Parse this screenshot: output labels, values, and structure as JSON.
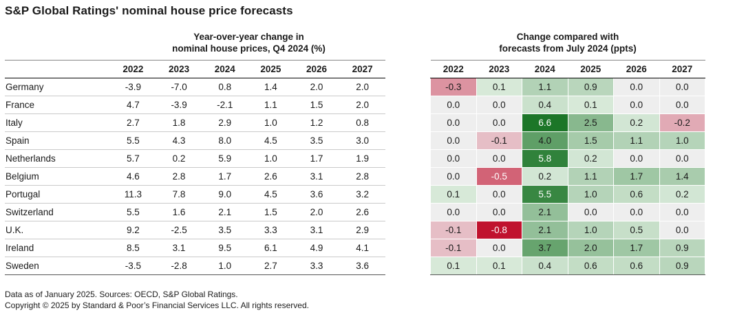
{
  "title": "S&P Global Ratings' nominal house price forecasts",
  "left_heading": [
    "Year-over-year change in",
    "nominal house prices, Q4 2024 (%)"
  ],
  "right_heading": [
    "Change compared with",
    "forecasts from July 2024 (ppts)"
  ],
  "footer": {
    "source": "Data as of January 2025. Sources: OECD, S&P Global Ratings.",
    "copyright": "Copyright © 2025 by Standard & Poor’s Financial Services LLC. All rights reserved."
  },
  "colors": {
    "positive_dark": "#1f7a2a",
    "positive_light": "#d7e8d8",
    "neutral": "#eeeeee",
    "negative_light": "#e7c4cb",
    "negative_dark": "#c0122e"
  },
  "chart_data": [
    {
      "type": "table",
      "title": "Year-over-year change in nominal house prices, Q4 2024 (%)",
      "columns": [
        "2022",
        "2023",
        "2024",
        "2025",
        "2026",
        "2027"
      ],
      "rows": [
        {
          "country": "Germany",
          "values": [
            "-3.9",
            "-7.0",
            "0.8",
            "1.4",
            "2.0",
            "2.0"
          ]
        },
        {
          "country": "France",
          "values": [
            "4.7",
            "-3.9",
            "-2.1",
            "1.1",
            "1.5",
            "2.0"
          ]
        },
        {
          "country": "Italy",
          "values": [
            "2.7",
            "1.8",
            "2.9",
            "1.0",
            "1.2",
            "0.8"
          ]
        },
        {
          "country": "Spain",
          "values": [
            "5.5",
            "4.3",
            "8.0",
            "4.5",
            "3.5",
            "3.0"
          ]
        },
        {
          "country": "Netherlands",
          "values": [
            "5.7",
            "0.2",
            "5.9",
            "1.0",
            "1.7",
            "1.9"
          ]
        },
        {
          "country": "Belgium",
          "values": [
            "4.6",
            "2.8",
            "1.7",
            "2.6",
            "3.1",
            "2.8"
          ]
        },
        {
          "country": "Portugal",
          "values": [
            "11.3",
            "7.8",
            "9.0",
            "4.5",
            "3.6",
            "3.2"
          ]
        },
        {
          "country": "Switzerland",
          "values": [
            "5.5",
            "1.6",
            "2.1",
            "1.5",
            "2.0",
            "2.6"
          ]
        },
        {
          "country": "U.K.",
          "values": [
            "9.2",
            "-2.5",
            "3.5",
            "3.3",
            "3.1",
            "2.9"
          ]
        },
        {
          "country": "Ireland",
          "values": [
            "8.5",
            "3.1",
            "9.5",
            "6.1",
            "4.9",
            "4.1"
          ]
        },
        {
          "country": "Sweden",
          "values": [
            "-3.5",
            "-2.8",
            "1.0",
            "2.7",
            "3.3",
            "3.6"
          ]
        }
      ]
    },
    {
      "type": "heatmap",
      "title": "Change compared with forecasts from July 2024 (ppts)",
      "columns": [
        "2022",
        "2023",
        "2024",
        "2025",
        "2026",
        "2027"
      ],
      "rows": [
        {
          "country": "Germany",
          "values": [
            "-0.3",
            "0.1",
            "1.1",
            "0.9",
            "0.0",
            "0.0"
          ]
        },
        {
          "country": "France",
          "values": [
            "0.0",
            "0.0",
            "0.4",
            "0.1",
            "0.0",
            "0.0"
          ]
        },
        {
          "country": "Italy",
          "values": [
            "0.0",
            "0.0",
            "6.6",
            "2.5",
            "0.2",
            "-0.2"
          ]
        },
        {
          "country": "Spain",
          "values": [
            "0.0",
            "-0.1",
            "4.0",
            "1.5",
            "1.1",
            "1.0"
          ]
        },
        {
          "country": "Netherlands",
          "values": [
            "0.0",
            "0.0",
            "5.8",
            "0.2",
            "0.0",
            "0.0"
          ]
        },
        {
          "country": "Belgium",
          "values": [
            "0.0",
            "-0.5",
            "0.2",
            "1.1",
            "1.7",
            "1.4"
          ]
        },
        {
          "country": "Portugal",
          "values": [
            "0.1",
            "0.0",
            "5.5",
            "1.0",
            "0.6",
            "0.2"
          ]
        },
        {
          "country": "Switzerland",
          "values": [
            "0.0",
            "0.0",
            "2.1",
            "0.0",
            "0.0",
            "0.0"
          ]
        },
        {
          "country": "U.K.",
          "values": [
            "-0.1",
            "-0.8",
            "2.1",
            "1.0",
            "0.5",
            "0.0"
          ]
        },
        {
          "country": "Ireland",
          "values": [
            "-0.1",
            "0.0",
            "3.7",
            "2.0",
            "1.7",
            "0.9"
          ]
        },
        {
          "country": "Sweden",
          "values": [
            "0.1",
            "0.1",
            "0.4",
            "0.6",
            "0.6",
            "0.9"
          ]
        }
      ]
    }
  ]
}
